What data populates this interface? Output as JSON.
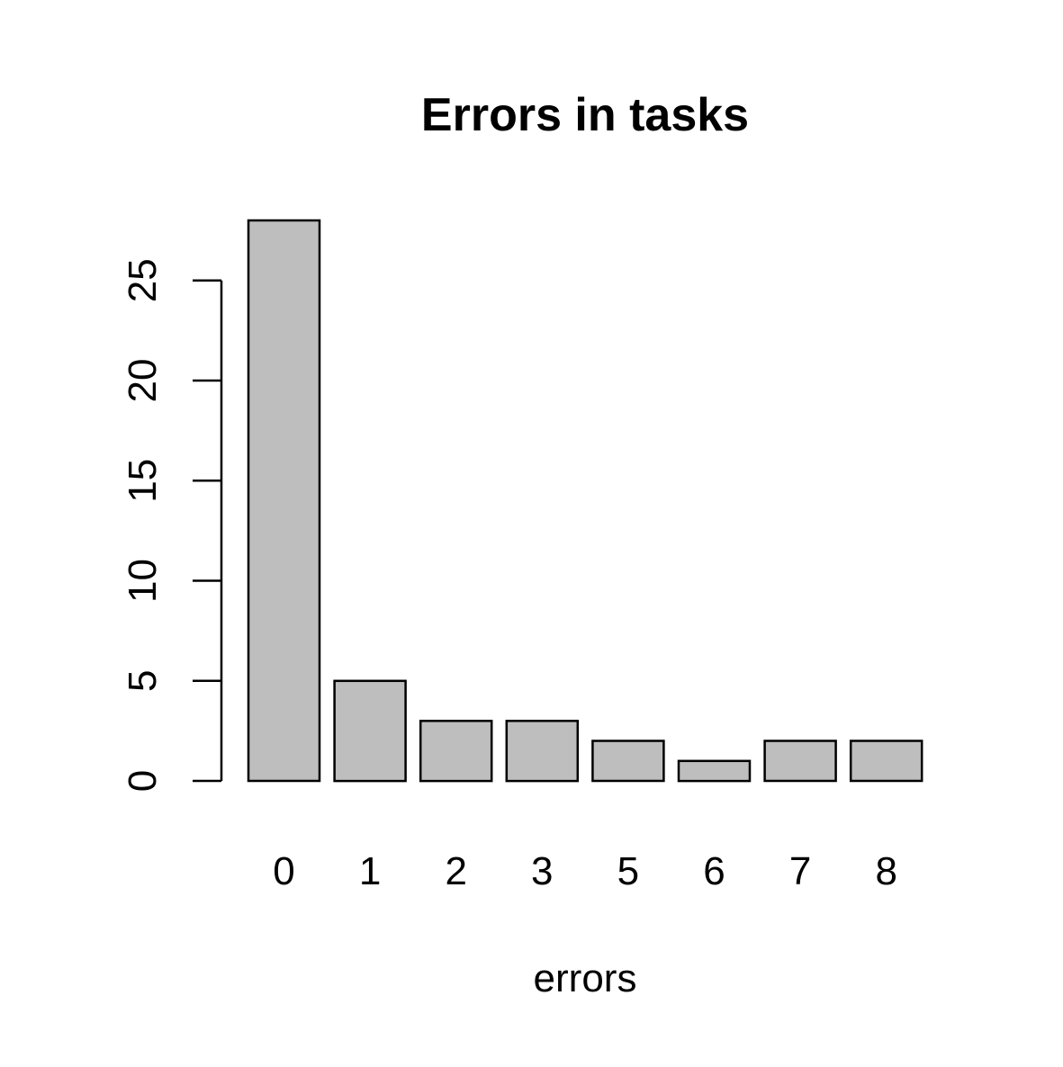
{
  "chart_data": {
    "type": "bar",
    "title": "Errors in tasks",
    "xlabel": "errors",
    "ylabel": "",
    "categories": [
      "0",
      "1",
      "2",
      "3",
      "5",
      "6",
      "7",
      "8"
    ],
    "values": [
      28,
      5,
      3,
      3,
      2,
      1,
      2,
      2
    ],
    "ylim": [
      0,
      28
    ],
    "yticks": [
      "0",
      "5",
      "10",
      "15",
      "20",
      "25"
    ],
    "grid": false,
    "legend": "none",
    "colors": {
      "bar_fill": "#bebebe",
      "bar_stroke": "#000000",
      "axis": "#000000"
    }
  }
}
